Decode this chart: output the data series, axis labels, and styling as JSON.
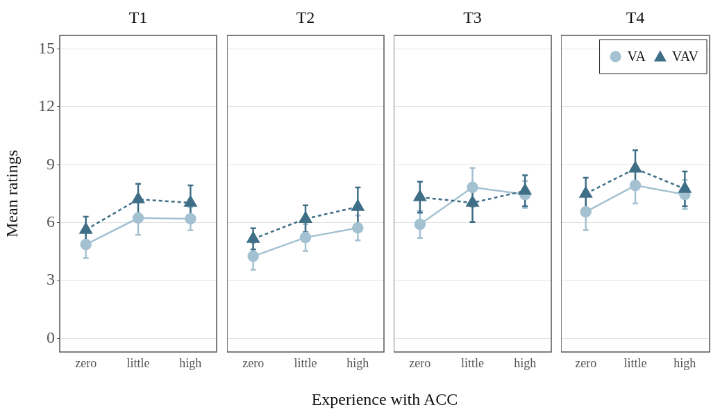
{
  "chart_data": [
    {
      "type": "line",
      "title": "T1",
      "ylabel": "Mean ratings",
      "xlabel": "Experience with ACC",
      "categories": [
        "zero",
        "little",
        "high"
      ],
      "ylim": [
        -0.7,
        15.7
      ],
      "yticks": [
        0,
        3,
        6,
        9,
        12,
        15
      ],
      "grid": "y",
      "series": [
        {
          "color": "#a3c1d1",
          "marker": "circle",
          "line_style": "solid",
          "values": [
            4.87,
            6.24,
            6.2
          ],
          "errors": [
            0.7,
            0.87,
            0.6
          ]
        },
        {
          "color": "#3f6e87",
          "marker": "triangle",
          "line_style": "dashed",
          "values": [
            5.63,
            7.21,
            7.03
          ],
          "errors": [
            0.68,
            0.8,
            0.9
          ]
        }
      ]
    },
    {
      "type": "line",
      "title": "T2",
      "categories": [
        "zero",
        "little",
        "high"
      ],
      "ylim": [
        -0.7,
        15.7
      ],
      "yticks": [
        0,
        3,
        6,
        9,
        12,
        15
      ],
      "grid": "y",
      "tick_labels": "x",
      "series": [
        {
          "color": "#a3c1d1",
          "marker": "circle",
          "line_style": "solid",
          "values": [
            4.26,
            5.23,
            5.73
          ],
          "errors": [
            0.7,
            0.7,
            0.65
          ]
        },
        {
          "color": "#3f6e87",
          "marker": "triangle",
          "line_style": "dashed",
          "values": [
            5.16,
            6.2,
            6.82
          ],
          "errors": [
            0.55,
            0.7,
            1.0
          ]
        }
      ]
    },
    {
      "type": "line",
      "title": "T3",
      "categories": [
        "zero",
        "little",
        "high"
      ],
      "ylim": [
        -0.7,
        15.7
      ],
      "yticks": [
        0,
        3,
        6,
        9,
        12,
        15
      ],
      "grid": "y",
      "tick_labels": "x",
      "series": [
        {
          "color": "#a3c1d1",
          "marker": "circle",
          "line_style": "solid",
          "values": [
            5.91,
            7.83,
            7.46
          ],
          "errors": [
            0.7,
            1.0,
            0.7
          ]
        },
        {
          "color": "#3f6e87",
          "marker": "triangle",
          "line_style": "dashed",
          "values": [
            7.32,
            7.03,
            7.65
          ],
          "errors": [
            0.8,
            1.0,
            0.8
          ]
        }
      ]
    },
    {
      "type": "line",
      "title": "T4",
      "categories": [
        "zero",
        "little",
        "high"
      ],
      "ylim": [
        -0.7,
        15.7
      ],
      "yticks": [
        0,
        3,
        6,
        9,
        12,
        15
      ],
      "grid": "y",
      "tick_labels": "x",
      "legend": "top right",
      "series": [
        {
          "name": "VA",
          "color": "#a3c1d1",
          "marker": "circle",
          "line_style": "solid",
          "values": [
            6.56,
            7.93,
            7.46
          ],
          "errors": [
            0.95,
            0.93,
            0.75
          ]
        },
        {
          "name": "VAV",
          "color": "#3f6e87",
          "marker": "triangle",
          "line_style": "dashed",
          "values": [
            7.5,
            8.8,
            7.75
          ],
          "errors": [
            0.83,
            0.95,
            0.9
          ]
        }
      ]
    }
  ]
}
